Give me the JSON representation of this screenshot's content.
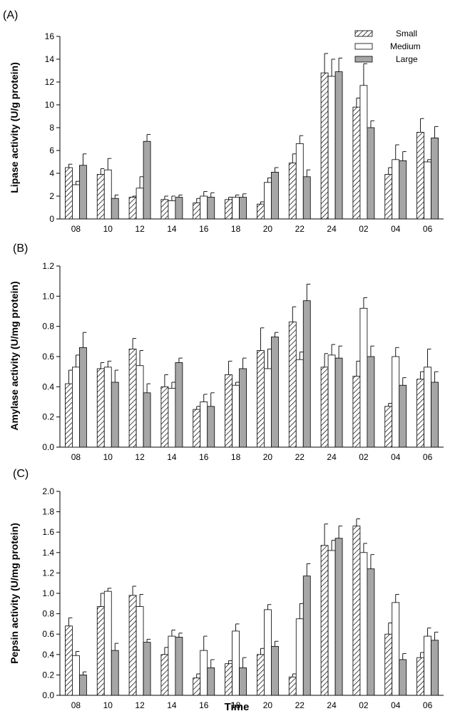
{
  "xlabel": "Time",
  "legend": {
    "position": "top-right",
    "entries": [
      {
        "name": "Small",
        "fill": "hatch"
      },
      {
        "name": "Medium",
        "fill": "#ffffff"
      },
      {
        "name": "Large",
        "fill": "#a6a6a6"
      }
    ]
  },
  "chart_data": [
    {
      "type": "bar",
      "panel_label": "(A)",
      "ylabel": "Lipase activity (U/g protein)",
      "ylim": [
        0,
        16
      ],
      "yticks": [
        "0",
        "2",
        "4",
        "6",
        "8",
        "10",
        "12",
        "14",
        "16"
      ],
      "categories": [
        "08",
        "10",
        "12",
        "14",
        "16",
        "18",
        "20",
        "22",
        "24",
        "02",
        "04",
        "06"
      ],
      "series": [
        {
          "name": "Small",
          "values": [
            4.5,
            3.9,
            1.9,
            1.7,
            1.4,
            1.7,
            1.3,
            4.9,
            12.8,
            9.8,
            3.9,
            7.6
          ],
          "errors": [
            0.3,
            0.5,
            0.1,
            0.3,
            0.4,
            0.2,
            0.2,
            0.8,
            1.7,
            0.8,
            0.6,
            1.2
          ]
        },
        {
          "name": "Medium",
          "values": [
            3.0,
            4.3,
            2.7,
            1.6,
            2.0,
            1.9,
            3.2,
            6.6,
            12.5,
            11.7,
            5.2,
            5.0
          ],
          "errors": [
            0.3,
            1.0,
            1.0,
            0.4,
            0.4,
            0.2,
            0.4,
            0.7,
            1.5,
            1.9,
            1.3,
            0.2
          ]
        },
        {
          "name": "Large",
          "values": [
            4.7,
            1.8,
            6.8,
            1.9,
            1.9,
            1.9,
            4.1,
            3.7,
            12.9,
            8.0,
            5.1,
            7.1
          ],
          "errors": [
            1.0,
            0.3,
            0.6,
            0.2,
            0.4,
            0.3,
            0.4,
            0.6,
            1.2,
            0.6,
            0.8,
            1.0
          ]
        }
      ]
    },
    {
      "type": "bar",
      "panel_label": "(B)",
      "ylabel": "Amylase activity (U/mg protein)",
      "ylim": [
        0,
        1.2
      ],
      "yticks": [
        "0.0",
        "0.2",
        "0.4",
        "0.6",
        "0.8",
        "1.0",
        "1.2"
      ],
      "categories": [
        "08",
        "10",
        "12",
        "14",
        "16",
        "18",
        "20",
        "22",
        "24",
        "02",
        "04",
        "06"
      ],
      "series": [
        {
          "name": "Small",
          "values": [
            0.42,
            0.52,
            0.65,
            0.4,
            0.25,
            0.48,
            0.64,
            0.83,
            0.53,
            0.47,
            0.27,
            0.45
          ],
          "errors": [
            0.09,
            0.04,
            0.07,
            0.08,
            0.02,
            0.09,
            0.15,
            0.1,
            0.09,
            0.1,
            0.02,
            0.05
          ]
        },
        {
          "name": "Medium",
          "values": [
            0.53,
            0.53,
            0.54,
            0.39,
            0.3,
            0.41,
            0.52,
            0.58,
            0.61,
            0.92,
            0.6,
            0.53
          ],
          "errors": [
            0.08,
            0.04,
            0.1,
            0.04,
            0.05,
            0.02,
            0.13,
            0.05,
            0.07,
            0.07,
            0.06,
            0.12
          ]
        },
        {
          "name": "Large",
          "values": [
            0.66,
            0.43,
            0.36,
            0.56,
            0.27,
            0.52,
            0.73,
            0.97,
            0.59,
            0.6,
            0.41,
            0.43
          ],
          "errors": [
            0.1,
            0.08,
            0.06,
            0.03,
            0.09,
            0.07,
            0.03,
            0.11,
            0.08,
            0.07,
            0.05,
            0.07
          ]
        }
      ]
    },
    {
      "type": "bar",
      "panel_label": "(C)",
      "ylabel": "Pepsin activity (U/mg protein)",
      "ylim": [
        0,
        2.0
      ],
      "yticks": [
        "0.0",
        "0.2",
        "0.4",
        "0.6",
        "0.8",
        "1.0",
        "1.2",
        "1.4",
        "1.6",
        "1.8",
        "2.0"
      ],
      "categories": [
        "08",
        "10",
        "12",
        "14",
        "16",
        "18",
        "20",
        "22",
        "24",
        "02",
        "04",
        "06"
      ],
      "series": [
        {
          "name": "Small",
          "values": [
            0.68,
            0.87,
            0.98,
            0.4,
            0.17,
            0.31,
            0.4,
            0.18,
            1.47,
            1.66,
            0.6,
            0.37
          ],
          "errors": [
            0.08,
            0.13,
            0.09,
            0.07,
            0.04,
            0.03,
            0.06,
            0.03,
            0.21,
            0.07,
            0.11,
            0.05
          ]
        },
        {
          "name": "Medium",
          "values": [
            0.39,
            1.02,
            0.87,
            0.58,
            0.44,
            0.63,
            0.84,
            0.75,
            1.42,
            1.4,
            0.91,
            0.58
          ],
          "errors": [
            0.04,
            0.03,
            0.12,
            0.06,
            0.14,
            0.07,
            0.05,
            0.15,
            0.1,
            0.09,
            0.08,
            0.08
          ]
        },
        {
          "name": "Large",
          "values": [
            0.2,
            0.44,
            0.52,
            0.57,
            0.27,
            0.27,
            0.48,
            1.17,
            1.54,
            1.24,
            0.35,
            0.54
          ],
          "errors": [
            0.03,
            0.07,
            0.03,
            0.04,
            0.08,
            0.1,
            0.05,
            0.12,
            0.12,
            0.14,
            0.06,
            0.08
          ]
        }
      ]
    }
  ]
}
